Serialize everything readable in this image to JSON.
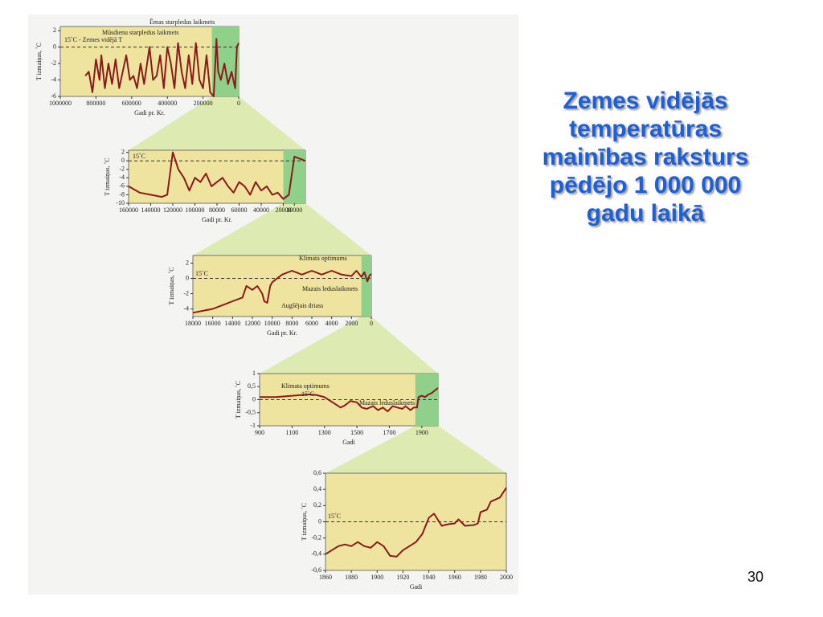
{
  "title": "Zemes vidējās temperatūras mainības raksturs pēdējo 1 000 000 gadu laikā",
  "page_number": "30",
  "chart_data": [
    {
      "type": "line",
      "color": "#8b1a1a",
      "x": [
        860000,
        840000,
        820000,
        800000,
        780000,
        770000,
        750000,
        730000,
        710000,
        690000,
        670000,
        650000,
        630000,
        610000,
        590000,
        570000,
        550000,
        530000,
        500000,
        480000,
        460000,
        440000,
        420000,
        400000,
        380000,
        360000,
        340000,
        320000,
        300000,
        280000,
        260000,
        240000,
        220000,
        200000,
        180000,
        160000,
        140000,
        125000,
        115000,
        100000,
        80000,
        60000,
        40000,
        20000,
        10000,
        0
      ],
      "values": [
        -3.5,
        -3,
        -5.5,
        -1.5,
        -4,
        -1,
        -5,
        -2,
        -4.5,
        -1.5,
        -5,
        -3,
        -1,
        -4,
        -3.5,
        -5,
        -2,
        -4.5,
        0,
        -4,
        -3.5,
        -1,
        -5,
        0,
        -2,
        -5,
        0.5,
        -3,
        -5,
        -1,
        -4.5,
        0.5,
        -4,
        -5,
        -1,
        -5.5,
        -6,
        1,
        -3,
        -4,
        -2,
        -4.5,
        -3,
        -5,
        0,
        0.5
      ],
      "xlim": [
        1000000,
        0
      ],
      "ylim": [
        -6,
        2.5
      ],
      "xticks": [
        1000000,
        800000,
        600000,
        400000,
        200000,
        0
      ],
      "yticks": [
        2,
        0,
        -2,
        -4,
        -6
      ],
      "hline": 0,
      "highlight": [
        150000,
        0
      ],
      "xlabel": "Gadi pr. Kr.",
      "ylabel": "T izmaiņas, ˚C",
      "annotations": [
        "Ēmas starpledus laikmets",
        "Mūsdienu starpledus laikmets",
        "15˚C - Zemes vidējā T"
      ]
    },
    {
      "type": "line",
      "color": "#8b1a1a",
      "x": [
        160000,
        150000,
        140000,
        130000,
        125000,
        120000,
        115000,
        110000,
        105000,
        100000,
        95000,
        90000,
        85000,
        80000,
        75000,
        70000,
        65000,
        60000,
        55000,
        50000,
        45000,
        40000,
        35000,
        30000,
        25000,
        20000,
        15000,
        10000,
        5000,
        0
      ],
      "values": [
        -6,
        -7.5,
        -8,
        -8.5,
        -8,
        2,
        -2,
        -4,
        -7,
        -4,
        -5,
        -3,
        -6,
        -5,
        -4,
        -6,
        -7.5,
        -5,
        -6,
        -8,
        -5,
        -7,
        -6,
        -8,
        -7.5,
        -9,
        -8,
        1,
        0.5,
        0
      ],
      "xlim": [
        160000,
        0
      ],
      "ylim": [
        -10,
        2.5
      ],
      "xticks": [
        160000,
        140000,
        120000,
        100000,
        80000,
        60000,
        40000,
        20000,
        10000
      ],
      "yticks": [
        2,
        0,
        -2,
        -4,
        -6,
        -8,
        -10
      ],
      "hline": 0,
      "highlight": [
        20000,
        0
      ],
      "xlabel": "Gadi pr. Kr.",
      "ylabel": "T izmaiņas, ˚C",
      "annotations": [
        "15˚C"
      ]
    },
    {
      "type": "line",
      "color": "#8b1a1a",
      "x": [
        18000,
        16000,
        15000,
        14000,
        13000,
        12600,
        12000,
        11500,
        11000,
        10800,
        10500,
        10200,
        10000,
        9000,
        8000,
        7000,
        6000,
        5000,
        4000,
        3000,
        2000,
        1500,
        1000,
        700,
        400,
        200,
        0
      ],
      "values": [
        -4.5,
        -4,
        -3.5,
        -3,
        -2.5,
        -1,
        -1.5,
        -1,
        -2,
        -3,
        -3.2,
        -1,
        -0.5,
        0.5,
        1,
        0.5,
        1,
        0.5,
        1,
        0.5,
        0.3,
        1,
        0.2,
        0.8,
        -0.4,
        0.3,
        0.6
      ],
      "xlim": [
        18000,
        0
      ],
      "ylim": [
        -5,
        3
      ],
      "xticks": [
        18000,
        16000,
        14000,
        12000,
        10000,
        8000,
        6000,
        4000,
        2000,
        0
      ],
      "yticks": [
        2,
        0,
        -2,
        -4
      ],
      "hline": 0,
      "highlight": [
        1000,
        0
      ],
      "xlabel": "Gadi pr. Kr.",
      "ylabel": "T izmaiņas, ˚C",
      "annotations": [
        "Klimata optimums",
        "15˚C",
        "Mazais leduslaikmets",
        "Augšējais driass"
      ]
    },
    {
      "type": "line",
      "color": "#8b1a1a",
      "x": [
        900,
        1000,
        1100,
        1200,
        1250,
        1300,
        1350,
        1400,
        1430,
        1460,
        1500,
        1530,
        1560,
        1600,
        1630,
        1660,
        1690,
        1720,
        1750,
        1780,
        1800,
        1830,
        1850,
        1870,
        1880,
        1900,
        1920,
        1940,
        1960,
        2000
      ],
      "values": [
        0.1,
        0.1,
        0.15,
        0.2,
        0.18,
        0.1,
        -0.1,
        -0.3,
        -0.2,
        -0.05,
        -0.1,
        -0.3,
        -0.35,
        -0.25,
        -0.4,
        -0.3,
        -0.45,
        -0.25,
        -0.3,
        -0.35,
        -0.25,
        -0.4,
        -0.3,
        -0.3,
        0.1,
        0.15,
        0.1,
        0.2,
        0.25,
        0.45
      ],
      "xlim": [
        900,
        2000
      ],
      "ylim": [
        -1,
        1
      ],
      "xticks": [
        900,
        1100,
        1300,
        1500,
        1700,
        1900
      ],
      "yticks": [
        1,
        {
          "value": 0.5,
          "label": "0,5"
        },
        0,
        {
          "value": -0.5,
          "label": "-0,5"
        },
        -1
      ],
      "hline": 0,
      "highlight": [
        1860,
        2000
      ],
      "xlabel": "Gadi",
      "ylabel": "T izmaiņas, ˚C",
      "annotations": [
        "Klimata optimums",
        "15˚C",
        "Mazais leduslaikmets"
      ]
    },
    {
      "type": "line",
      "color": "#8b1a1a",
      "x": [
        1860,
        1865,
        1870,
        1875,
        1880,
        1885,
        1890,
        1895,
        1900,
        1905,
        1910,
        1915,
        1920,
        1925,
        1930,
        1935,
        1940,
        1944,
        1950,
        1955,
        1960,
        1963,
        1968,
        1975,
        1978,
        1980,
        1985,
        1988,
        1995,
        2000
      ],
      "values": [
        -0.4,
        -0.35,
        -0.3,
        -0.28,
        -0.3,
        -0.25,
        -0.3,
        -0.32,
        -0.25,
        -0.3,
        -0.42,
        -0.43,
        -0.35,
        -0.3,
        -0.25,
        -0.15,
        0.05,
        0.1,
        -0.05,
        -0.03,
        -0.02,
        0.03,
        -0.05,
        -0.04,
        -0.02,
        0.12,
        0.15,
        0.25,
        0.3,
        0.42
      ],
      "xlim": [
        1860,
        2000
      ],
      "ylim": [
        -0.6,
        0.6
      ],
      "xticks": [
        1860,
        1880,
        1900,
        1920,
        1940,
        1960,
        1980,
        2000
      ],
      "yticks": [
        {
          "value": 0.6,
          "label": "0,6"
        },
        {
          "value": 0.4,
          "label": "0,4"
        },
        {
          "value": 0.2,
          "label": "0,2"
        },
        0,
        {
          "value": -0.2,
          "label": "-0,2"
        },
        {
          "value": -0.4,
          "label": "-0,4"
        },
        {
          "value": -0.6,
          "label": "-0,6"
        }
      ],
      "hline": 0,
      "xlabel": "Gadi",
      "ylabel": "T izmaiņas, ˚C",
      "annotations": [
        "15˚C"
      ]
    }
  ]
}
